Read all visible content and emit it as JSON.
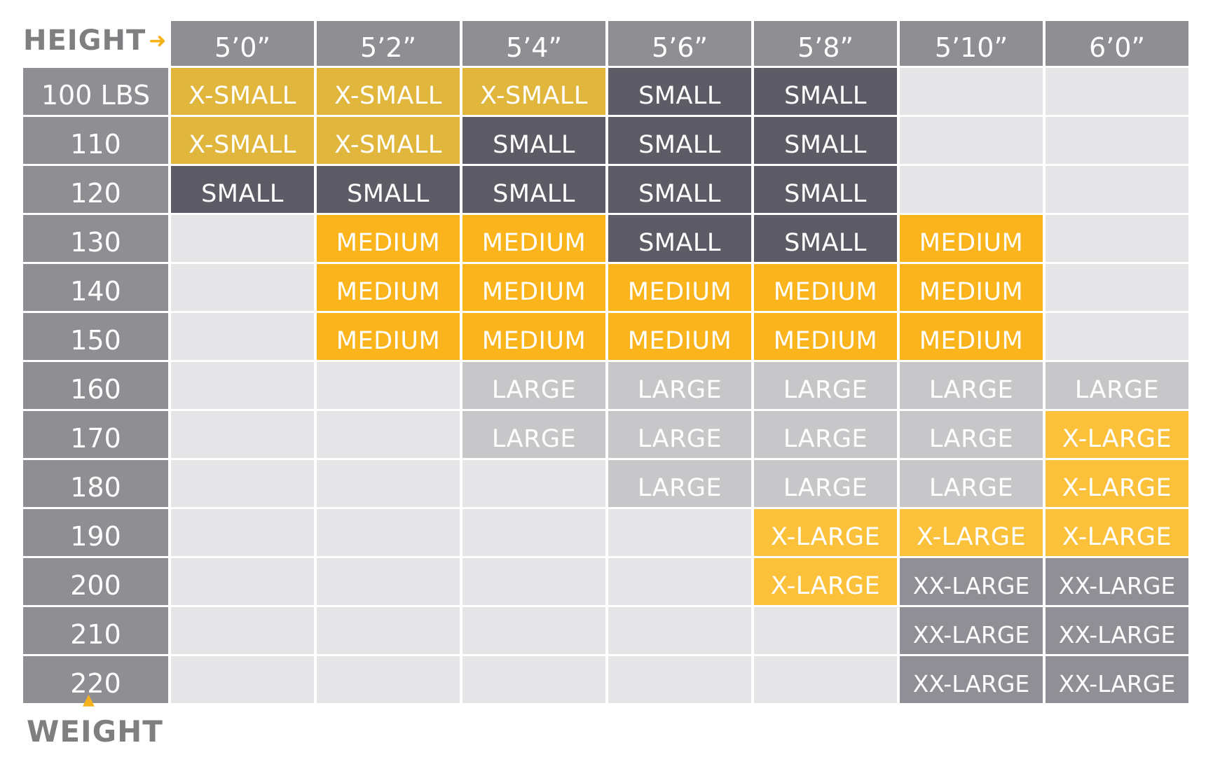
{
  "labels": {
    "height": "HEIGHT",
    "weight": "WEIGHT"
  },
  "colors": {
    "X-SMALL": "#e0b63c",
    "SMALL": "#5d5b65",
    "MEDIUM": "#fbb41b",
    "LARGE": "#c7c7c9",
    "X-LARGE": "#fbc13b",
    "XX-LARGE": "#8f8f95",
    "empty": "#e5e5e7"
  },
  "heights": [
    "5’0”",
    "5’2”",
    "5’4”",
    "5’6”",
    "5’8”",
    "5’10”",
    "6’0”"
  ],
  "weights": [
    "100 LBS",
    "110",
    "120",
    "130",
    "140",
    "150",
    "160",
    "170",
    "180",
    "190",
    "200",
    "210",
    "220"
  ],
  "sizes": [
    [
      "X-SMALL",
      "X-SMALL",
      "X-SMALL",
      "SMALL",
      "SMALL",
      "",
      ""
    ],
    [
      "X-SMALL",
      "X-SMALL",
      "SMALL",
      "SMALL",
      "SMALL",
      "",
      ""
    ],
    [
      "SMALL",
      "SMALL",
      "SMALL",
      "SMALL",
      "SMALL",
      "",
      ""
    ],
    [
      "",
      "MEDIUM",
      "MEDIUM",
      "SMALL",
      "SMALL",
      "MEDIUM",
      ""
    ],
    [
      "",
      "MEDIUM",
      "MEDIUM",
      "MEDIUM",
      "MEDIUM",
      "MEDIUM",
      ""
    ],
    [
      "",
      "MEDIUM",
      "MEDIUM",
      "MEDIUM",
      "MEDIUM",
      "MEDIUM",
      ""
    ],
    [
      "",
      "",
      "LARGE",
      "LARGE",
      "LARGE",
      "LARGE",
      "LARGE"
    ],
    [
      "",
      "",
      "LARGE",
      "LARGE",
      "LARGE",
      "LARGE",
      "X-LARGE"
    ],
    [
      "",
      "",
      "",
      "LARGE",
      "LARGE",
      "LARGE",
      "X-LARGE"
    ],
    [
      "",
      "",
      "",
      "",
      "X-LARGE",
      "X-LARGE",
      "X-LARGE"
    ],
    [
      "",
      "",
      "",
      "",
      "X-LARGE",
      "XX-LARGE",
      "XX-LARGE"
    ],
    [
      "",
      "",
      "",
      "",
      "",
      "XX-LARGE",
      "XX-LARGE"
    ],
    [
      "",
      "",
      "",
      "",
      "",
      "XX-LARGE",
      "XX-LARGE"
    ]
  ]
}
